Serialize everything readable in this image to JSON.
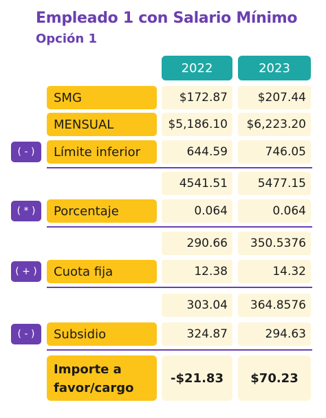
{
  "title": "Empleado 1 con Salario Mínimo",
  "subtitle": "Opción 1",
  "years": [
    "2022",
    "2023"
  ],
  "rows": {
    "smg": {
      "label": "SMG",
      "v2022": "$172.87",
      "v2023": "$207.44"
    },
    "mensual": {
      "label": "MENSUAL",
      "v2022": "$5,186.10",
      "v2023": "$6,223.20"
    },
    "limite": {
      "op": "( - )",
      "label": "Límite inferior",
      "v2022": "644.59",
      "v2023": "746.05"
    },
    "sub1": {
      "v2022": "4541.51",
      "v2023": "5477.15"
    },
    "porcentaje": {
      "op": "( * )",
      "label": "Porcentaje",
      "v2022": "0.064",
      "v2023": "0.064"
    },
    "sub2": {
      "v2022": "290.66",
      "v2023": "350.5376"
    },
    "cuota": {
      "op": "( + )",
      "label": "Cuota fija",
      "v2022": "12.38",
      "v2023": "14.32"
    },
    "sub3": {
      "v2022": "303.04",
      "v2023": "364.8576"
    },
    "subsidio": {
      "op": "( - )",
      "label": "Subsidio",
      "v2022": "324.87",
      "v2023": "294.63"
    },
    "importe": {
      "label_line1": "Importe a",
      "label_line2": "favor/cargo",
      "v2022": "-$21.83",
      "v2023": "$70.23"
    }
  },
  "colors": {
    "purple": "#6a3fb0",
    "teal": "#1ea7a4",
    "yellow": "#fcc419",
    "cream": "#fef6db"
  }
}
